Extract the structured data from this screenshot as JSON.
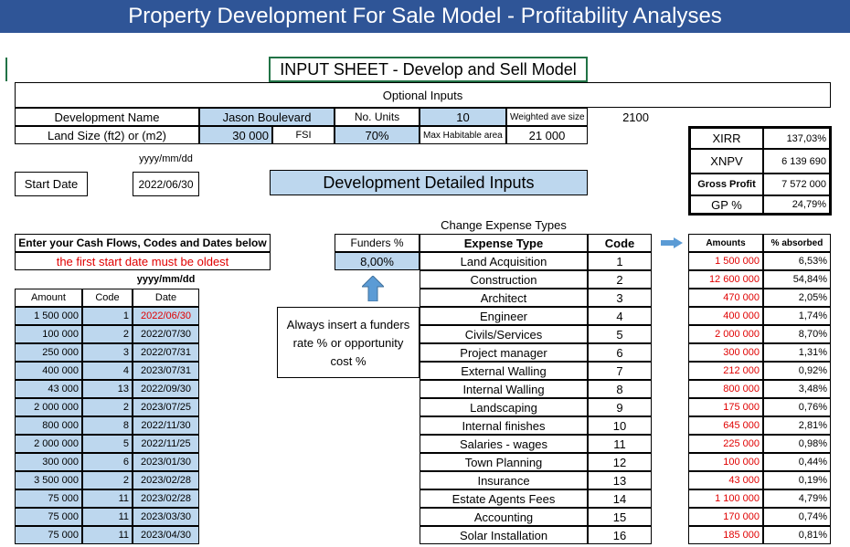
{
  "banner": "Property Development For Sale Model - Profitability Analyses",
  "sheet_title": "INPUT SHEET - Develop and Sell Model",
  "optional_inputs": "Optional Inputs",
  "dev_name_label": "Development Name",
  "dev_name_value": "Jason Boulevard",
  "units_label": "No. Units",
  "units_value": "10",
  "wave_label": "Weighted ave size",
  "wave_value": "2100",
  "land_label": "Land Size (ft2) or (m2)",
  "land_value": "30 000",
  "fsi_label": "FSI",
  "fsi_value": "70%",
  "mha_label": "Max Habitable area",
  "mha_value": "21 000",
  "date_format": "yyyy/mm/dd",
  "start_date_label": "Start Date",
  "start_date_value": "2022/06/30",
  "detailed_inputs": "Development Detailed Inputs",
  "summary": [
    {
      "label": "XIRR",
      "value": "137,03%"
    },
    {
      "label": "XNPV",
      "value": "6 139 690"
    },
    {
      "label": "Gross Profit",
      "value": "7 572 000"
    },
    {
      "label": "GP %",
      "value": "24,79%"
    }
  ],
  "change_expense_types": "Change Expense Types",
  "cashflow_header": "Enter your Cash Flows, Codes and Dates below",
  "cashflow_note": "the first start date must be oldest",
  "cashflow_date_format": "yyyy/mm/dd",
  "cashflow_columns": [
    "Amount",
    "Code",
    "Date"
  ],
  "cashflows": [
    {
      "amount": "1 500 000",
      "code": "1",
      "date": "2022/06/30",
      "highlight": true
    },
    {
      "amount": "100 000",
      "code": "2",
      "date": "2022/07/30"
    },
    {
      "amount": "250 000",
      "code": "3",
      "date": "2022/07/31"
    },
    {
      "amount": "400 000",
      "code": "4",
      "date": "2023/07/31"
    },
    {
      "amount": "43 000",
      "code": "13",
      "date": "2022/09/30"
    },
    {
      "amount": "2 000 000",
      "code": "2",
      "date": "2023/07/25"
    },
    {
      "amount": "800 000",
      "code": "8",
      "date": "2022/11/30"
    },
    {
      "amount": "2 000 000",
      "code": "5",
      "date": "2022/11/25"
    },
    {
      "amount": "300 000",
      "code": "6",
      "date": "2023/01/30"
    },
    {
      "amount": "3 500 000",
      "code": "2",
      "date": "2023/02/28"
    },
    {
      "amount": "75 000",
      "code": "11",
      "date": "2023/02/28"
    },
    {
      "amount": "75 000",
      "code": "11",
      "date": "2023/03/30"
    },
    {
      "amount": "75 000",
      "code": "11",
      "date": "2023/04/30"
    }
  ],
  "funders_label": "Funders %",
  "funders_value": "8,00%",
  "funders_note": [
    "Always insert a funders",
    "rate % or opportunity",
    "cost %"
  ],
  "expense_columns": [
    "Expense Type",
    "Code",
    "Amounts",
    "% absorbed"
  ],
  "expenses": [
    {
      "type": "Land Acquisition",
      "code": "1",
      "amount": "1 500 000",
      "pct": "6,53%"
    },
    {
      "type": "Construction",
      "code": "2",
      "amount": "12 600 000",
      "pct": "54,84%"
    },
    {
      "type": "Architect",
      "code": "3",
      "amount": "470 000",
      "pct": "2,05%"
    },
    {
      "type": "Engineer",
      "code": "4",
      "amount": "400 000",
      "pct": "1,74%"
    },
    {
      "type": "Civils/Services",
      "code": "5",
      "amount": "2 000 000",
      "pct": "8,70%"
    },
    {
      "type": "Project manager",
      "code": "6",
      "amount": "300 000",
      "pct": "1,31%"
    },
    {
      "type": "External Walling",
      "code": "7",
      "amount": "212 000",
      "pct": "0,92%"
    },
    {
      "type": "Internal Walling",
      "code": "8",
      "amount": "800 000",
      "pct": "3,48%"
    },
    {
      "type": "Landscaping",
      "code": "9",
      "amount": "175 000",
      "pct": "0,76%"
    },
    {
      "type": "Internal finishes",
      "code": "10",
      "amount": "645 000",
      "pct": "2,81%"
    },
    {
      "type": "Salaries - wages",
      "code": "11",
      "amount": "225 000",
      "pct": "0,98%"
    },
    {
      "type": "Town Planning",
      "code": "12",
      "amount": "100 000",
      "pct": "0,44%"
    },
    {
      "type": "Insurance",
      "code": "13",
      "amount": "43 000",
      "pct": "0,19%"
    },
    {
      "type": "Estate Agents Fees",
      "code": "14",
      "amount": "1 100 000",
      "pct": "4,79%"
    },
    {
      "type": "Accounting",
      "code": "15",
      "amount": "170 000",
      "pct": "0,74%"
    },
    {
      "type": "Solar Installation",
      "code": "16",
      "amount": "185 000",
      "pct": "0,81%"
    }
  ],
  "colors": {
    "banner": "#2f5597",
    "input_fill": "#bdd7ee",
    "red_text": "#e00000",
    "arrow": "#5b9bd5"
  }
}
